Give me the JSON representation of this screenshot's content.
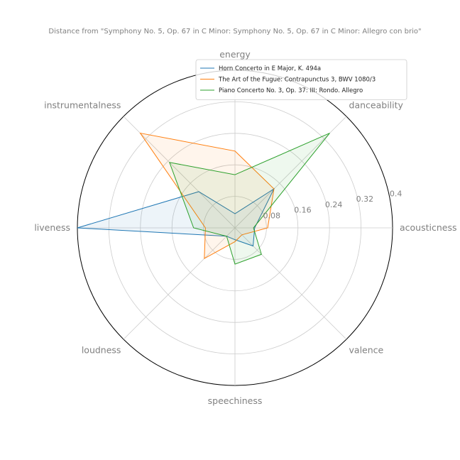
{
  "chart_data": {
    "type": "radar",
    "title": "Distance from \"Symphony No. 5, Op. 67 in C Minor: Symphony No. 5, Op. 67 in C Minor: Allegro con brio\"",
    "axes": [
      "energy",
      "danceability",
      "acousticness",
      "valence",
      "speechiness",
      "loudness",
      "liveness",
      "instrumentalness"
    ],
    "rlim": [
      0,
      0.4
    ],
    "r_ticks": [
      0.08,
      0.16,
      0.24,
      0.32,
      0.4
    ],
    "r_tick_labels": [
      "0.08",
      "0.16",
      "0.24",
      "0.32",
      "0.4"
    ],
    "grid": true,
    "legend_position": "top-right",
    "series": [
      {
        "name": "Horn Concerto in E Major, K. 494a",
        "color": "#1f77b4",
        "values": [
          0.036,
          0.14,
          0.05,
          0.065,
          0.03,
          0.03,
          0.4,
          0.13
        ]
      },
      {
        "name": "The Art of the Fugue: Contrapunctus 3, BWV 1080/3",
        "color": "#ff7f0e",
        "values": [
          0.195,
          0.14,
          0.083,
          0.025,
          0.035,
          0.11,
          0.075,
          0.34
        ]
      },
      {
        "name": "Piano Concerto No. 3, Op. 37: III: Rondo. Allegro",
        "color": "#2ca02c",
        "values": [
          0.135,
          0.34,
          0.047,
          0.095,
          0.092,
          0.03,
          0.105,
          0.235
        ]
      }
    ]
  }
}
